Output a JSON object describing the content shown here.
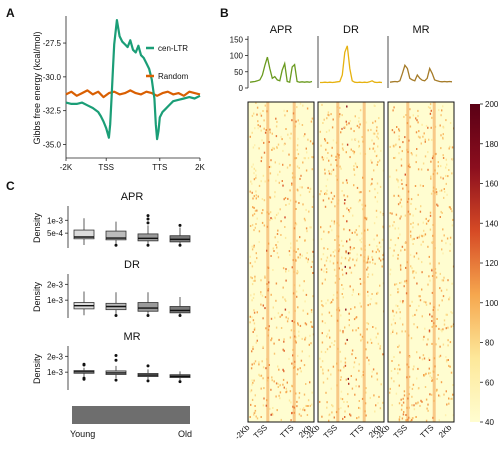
{
  "panels": {
    "a": "A",
    "b": "B",
    "c": "C"
  },
  "chart_data": [
    {
      "panel": "A",
      "type": "line",
      "ylabel": "Gibbs free energy (kcal/mol)",
      "xticks": [
        "-2K",
        "TSS",
        "TTS",
        "2K"
      ],
      "yticks": [
        "-27.5",
        "-30.0",
        "-32.5",
        "-35.0"
      ],
      "ylim": [
        -36,
        -25.5
      ],
      "legend_position": "right",
      "series": [
        {
          "name": "cen-LTR",
          "color": "#1b9e77",
          "x": [
            0,
            4,
            8,
            12,
            16,
            20,
            24,
            26,
            28,
            30,
            32,
            33,
            34,
            35,
            36,
            38,
            40,
            42,
            44,
            46,
            48,
            50,
            52,
            54,
            56,
            58,
            60,
            62,
            64,
            66,
            67,
            68,
            69,
            70,
            72,
            74,
            76,
            78,
            80,
            84,
            88,
            92,
            96,
            100
          ],
          "y": [
            -31.9,
            -32.0,
            -32.0,
            -31.9,
            -32.1,
            -32.3,
            -32.6,
            -32.9,
            -33.3,
            -33.8,
            -34.5,
            -33.5,
            -31.5,
            -29.5,
            -27.6,
            -25.8,
            -27.0,
            -27.4,
            -27.6,
            -27.8,
            -27.3,
            -28.0,
            -28.2,
            -27.7,
            -28.4,
            -28.6,
            -29.0,
            -29.4,
            -30.2,
            -31.6,
            -33.5,
            -34.6,
            -34.0,
            -33.0,
            -32.6,
            -32.4,
            -32.2,
            -32.0,
            -31.8,
            -31.7,
            -31.6,
            -31.5,
            -31.6,
            -31.4
          ]
        },
        {
          "name": "Random",
          "color": "#d95f02",
          "x": [
            0,
            4,
            8,
            12,
            16,
            20,
            24,
            28,
            32,
            36,
            40,
            44,
            48,
            52,
            56,
            60,
            64,
            68,
            72,
            76,
            80,
            84,
            88,
            92,
            96,
            100
          ],
          "y": [
            -31.3,
            -31.1,
            -31.4,
            -31.2,
            -31.0,
            -31.3,
            -31.1,
            -31.5,
            -31.2,
            -31.1,
            -31.3,
            -31.2,
            -31.0,
            -31.2,
            -31.3,
            -31.1,
            -31.2,
            -31.4,
            -31.2,
            -31.1,
            -31.3,
            -31.2,
            -31.4,
            -31.1,
            -31.2,
            -31.3
          ]
        }
      ]
    },
    {
      "panel": "B",
      "type": "heatmap",
      "columns": [
        {
          "name": "APR",
          "color": "#6a9a1f",
          "profile": [
            18,
            19,
            20,
            22,
            25,
            40,
            70,
            95,
            60,
            30,
            35,
            25,
            22,
            55,
            75,
            20,
            18,
            65,
            72,
            20,
            18,
            19,
            18,
            19,
            18,
            20
          ]
        },
        {
          "name": "DR",
          "color": "#e6b210",
          "profile": [
            17,
            17,
            18,
            17,
            18,
            17,
            18,
            19,
            20,
            40,
            110,
            130,
            60,
            22,
            18,
            17,
            18,
            17,
            18,
            17,
            19,
            22,
            18,
            17,
            18,
            17
          ]
        },
        {
          "name": "MR",
          "color": "#a57b28",
          "profile": [
            18,
            19,
            20,
            19,
            22,
            45,
            70,
            60,
            30,
            25,
            22,
            40,
            30,
            24,
            22,
            30,
            60,
            45,
            25,
            22,
            20,
            19,
            20,
            19,
            20,
            19
          ]
        }
      ],
      "profile_yticks": [
        "150",
        "100",
        "50",
        "0"
      ],
      "profile_ymax": 160,
      "xticks": [
        "-2Kb",
        "TSS",
        "TTS",
        "2Kb"
      ],
      "colorbar_ticks": [
        "200",
        "180",
        "160",
        "140",
        "120",
        "100",
        "80",
        "60",
        "40"
      ],
      "colorbar_range": [
        40,
        200
      ],
      "colors": [
        "#fffdd0",
        "#fde89a",
        "#f6a74e",
        "#d64a25",
        "#8b0e1e",
        "#5a0015"
      ]
    },
    {
      "panel": "C",
      "type": "box",
      "ylabel": "Density",
      "gradient_labels": {
        "left": "Young",
        "right": "Old"
      },
      "box_colors": [
        "#dcdcdc",
        "#bcbcbc",
        "#9a9a9a",
        "#7a7a7a"
      ],
      "plots": [
        {
          "name": "APR",
          "yticks": [
            "1e-3",
            "5e-4"
          ],
          "ytick_values": [
            0.001,
            0.0005
          ],
          "ylim": [
            0,
            0.0014
          ],
          "boxes": [
            {
              "min": 4e-05,
              "q1": 0.00028,
              "median": 0.00035,
              "q3": 0.00062,
              "max": 0.00108,
              "outliers": []
            },
            {
              "min": 4e-05,
              "q1": 0.00024,
              "median": 0.00031,
              "q3": 0.00058,
              "max": 0.00095,
              "outliers": [
                3e-05
              ]
            },
            {
              "min": 4e-05,
              "q1": 0.0002,
              "median": 0.0003,
              "q3": 0.00047,
              "max": 0.0008,
              "outliers": [
                0.0009,
                0.00105,
                0.00118,
                3e-05
              ]
            },
            {
              "min": 4e-05,
              "q1": 0.00016,
              "median": 0.00026,
              "q3": 0.0004,
              "max": 0.00072,
              "outliers": [
                0.0008,
                3e-05
              ]
            }
          ]
        },
        {
          "name": "DR",
          "yticks": [
            "2e-3",
            "1e-3"
          ],
          "ytick_values": [
            0.002,
            0.001
          ],
          "ylim": [
            0,
            0.0024
          ],
          "boxes": [
            {
              "min": 5e-05,
              "q1": 0.00045,
              "median": 0.00065,
              "q3": 0.00085,
              "max": 0.00155,
              "outliers": []
            },
            {
              "min": 5e-05,
              "q1": 0.0004,
              "median": 0.0006,
              "q3": 0.0008,
              "max": 0.0015,
              "outliers": [
                3e-05
              ]
            },
            {
              "min": 5e-05,
              "q1": 0.0003,
              "median": 0.0005,
              "q3": 0.00085,
              "max": 0.0015,
              "outliers": [
                3e-05
              ]
            },
            {
              "min": 5e-05,
              "q1": 0.0002,
              "median": 0.00035,
              "q3": 0.0006,
              "max": 0.0012,
              "outliers": [
                3e-05
              ]
            }
          ]
        },
        {
          "name": "MR",
          "yticks": [
            "2e-3",
            "1e-3"
          ],
          "ytick_values": [
            0.002,
            0.001
          ],
          "ylim": [
            0,
            0.0024
          ],
          "boxes": [
            {
              "min": 0.00072,
              "q1": 0.00093,
              "median": 0.00102,
              "q3": 0.0011,
              "max": 0.00128,
              "outliers": [
                0.00145,
                0.0015,
                0.00055,
                0.00062
              ]
            },
            {
              "min": 0.00062,
              "q1": 0.00085,
              "median": 0.00095,
              "q3": 0.00108,
              "max": 0.0014,
              "outliers": [
                0.00175,
                0.00205,
                0.0005
              ]
            },
            {
              "min": 0.00055,
              "q1": 0.00072,
              "median": 0.00082,
              "q3": 0.00092,
              "max": 0.00118,
              "outliers": [
                0.0014,
                0.00045
              ]
            },
            {
              "min": 0.0005,
              "q1": 0.00066,
              "median": 0.00074,
              "q3": 0.00084,
              "max": 0.00105,
              "outliers": [
                0.0004
              ]
            }
          ]
        }
      ]
    }
  ]
}
